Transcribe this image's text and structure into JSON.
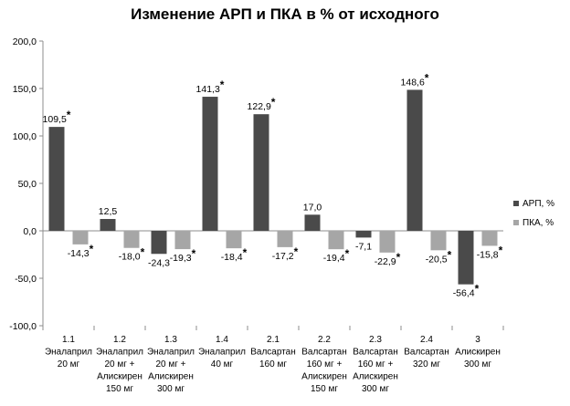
{
  "chart_data": {
    "type": "bar",
    "title": "Изменение АРП и ПКА в % от исходного",
    "xlabel": "",
    "ylabel": "",
    "ylim": [
      -100,
      200
    ],
    "yticks": [
      -100,
      -50,
      0,
      50,
      100,
      150,
      200
    ],
    "ytick_labels": [
      "-100,0",
      "-50,0",
      "0,0",
      "50,0",
      "100,0",
      "150,0",
      "200,0"
    ],
    "grid": false,
    "legend_position": "right",
    "categories": [
      [
        "1.1",
        "Эналаприл",
        "20 мг"
      ],
      [
        "1.2",
        "Эналаприл",
        "20 мг +",
        "Алискирен",
        "150 мг"
      ],
      [
        "1.3",
        "Эналаприл",
        "20 мг +",
        "Алискирен",
        "300 мг"
      ],
      [
        "1.4",
        "Эналаприл",
        "40 мг"
      ],
      [
        "2.1",
        "Валсартан",
        "160 мг"
      ],
      [
        "2.2",
        "Валсартан",
        "160 мг +",
        "Алискирен",
        "150 мг"
      ],
      [
        "2.3",
        "Валсартан",
        "160 мг +",
        "Алискирен",
        "300 мг"
      ],
      [
        "2.4",
        "Валсартан",
        "320 мг"
      ],
      [
        "3",
        "Алискирен",
        "300 мг"
      ]
    ],
    "series": [
      {
        "name": "АРП, %",
        "color": "#4a4a4a",
        "values": [
          109.5,
          12.5,
          -24.3,
          141.3,
          122.9,
          17.0,
          -7.1,
          148.6,
          -56.4
        ],
        "labels": [
          "109,5",
          "12,5",
          "-24,3",
          "141,3",
          "122,9",
          "17,0",
          "-7,1",
          "148,6",
          "-56,4"
        ],
        "significant": [
          true,
          false,
          false,
          true,
          true,
          false,
          false,
          true,
          true
        ]
      },
      {
        "name": "ПКА, %",
        "color": "#a6a6a6",
        "values": [
          -14.3,
          -18.0,
          -19.3,
          -18.4,
          -17.2,
          -19.4,
          -22.9,
          -20.5,
          -15.8
        ],
        "labels": [
          "-14,3",
          "-18,0",
          "-19,3",
          "-18,4",
          "-17,2",
          "-19,4",
          "-22,9",
          "-20,5",
          "-15,8"
        ],
        "significant": [
          true,
          true,
          true,
          true,
          true,
          true,
          true,
          true,
          true
        ]
      }
    ],
    "significance_mark": "*"
  }
}
